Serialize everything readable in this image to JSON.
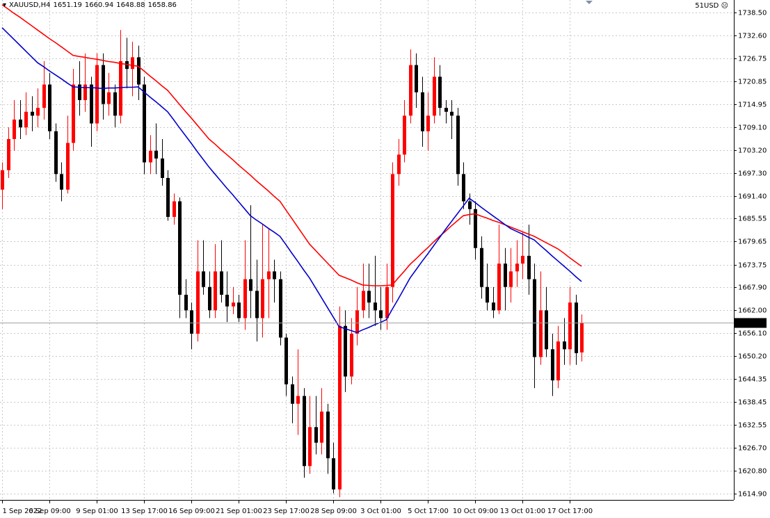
{
  "chart_data": {
    "type": "candlestick",
    "title": "XAUUSD,H4",
    "account": "51USD",
    "categories": [
      "1 Sep 2022",
      null,
      null,
      null,
      null,
      null,
      null,
      null,
      "6 Sep 09:00",
      null,
      null,
      null,
      null,
      null,
      null,
      null,
      "9 Sep 01:00",
      null,
      null,
      null,
      null,
      null,
      null,
      null,
      "13 Sep 17:00",
      null,
      null,
      null,
      null,
      null,
      null,
      null,
      "16 Sep 09:00",
      null,
      null,
      null,
      null,
      null,
      null,
      null,
      "21 Sep 01:00",
      null,
      null,
      null,
      null,
      null,
      null,
      null,
      "23 Sep 17:00",
      null,
      null,
      null,
      null,
      null,
      null,
      null,
      "28 Sep 09:00",
      null,
      null,
      null,
      null,
      null,
      null,
      null,
      "3 Oct 01:00",
      null,
      null,
      null,
      null,
      null,
      null,
      null,
      "5 Oct 17:00",
      null,
      null,
      null,
      null,
      null,
      null,
      null,
      "10 Oct 09:00",
      null,
      null,
      null,
      null,
      null,
      null,
      null,
      "13 Oct 01:00",
      null,
      null,
      null,
      null,
      null,
      null,
      null,
      "17 Oct 17:00",
      null,
      null
    ],
    "open": [
      1693,
      1698,
      1706,
      1711,
      1709,
      1713,
      1712,
      1714,
      1720,
      1708,
      1697,
      1693,
      1705,
      1720,
      1716,
      1720,
      1710,
      1725,
      1715,
      1718,
      1712,
      1726,
      1724,
      1727,
      1720,
      1700,
      1703,
      1701,
      1696,
      1686,
      1690,
      1666,
      1662,
      1656,
      1672,
      1668,
      1662,
      1672,
      1666,
      1663,
      1664,
      1660,
      1670,
      1667,
      1660,
      1670,
      1672,
      1670,
      1655,
      1643,
      1638,
      1640,
      1622,
      1632,
      1628,
      1636,
      1624,
      1616,
      1658,
      1645,
      1656,
      1662,
      1667,
      1664,
      1662,
      1660,
      1668,
      1697,
      1702,
      1712,
      1725,
      1718,
      1708,
      1712,
      1722,
      1714,
      1713,
      1712,
      1697,
      1690,
      1688,
      1678,
      1668,
      1664,
      1662,
      1674,
      1668,
      1672,
      1674,
      1676,
      1670,
      1650,
      1662,
      1652,
      1644,
      1654,
      1652,
      1664,
      1651.19
    ],
    "high": [
      1700,
      1709,
      1716,
      1716,
      1718,
      1717,
      1719,
      1726,
      1723,
      1710,
      1700,
      1712,
      1724,
      1726,
      1728,
      1722,
      1728,
      1728,
      1723,
      1720,
      1734,
      1732,
      1731,
      1730,
      1722,
      1707,
      1710,
      1706,
      1698,
      1692,
      1691,
      1670,
      1664,
      1680,
      1680,
      1672,
      1679,
      1680,
      1672,
      1668,
      1666,
      1680,
      1689,
      1675,
      1684,
      1683,
      1675,
      1672,
      1656,
      1645,
      1652,
      1642,
      1640,
      1640,
      1642,
      1638,
      1628,
      1663,
      1662,
      1660,
      1668,
      1674,
      1674,
      1676,
      1668,
      1674,
      1700,
      1706,
      1716,
      1729,
      1728,
      1722,
      1718,
      1727,
      1725,
      1716,
      1716,
      1714,
      1700,
      1692,
      1690,
      1681,
      1674,
      1668,
      1684,
      1678,
      1678,
      1680,
      1682,
      1684,
      1674,
      1672,
      1668,
      1656,
      1658,
      1660,
      1668,
      1666,
      1660.94
    ],
    "low": [
      1688,
      1696,
      1703,
      1706,
      1707,
      1708,
      1709,
      1711,
      1706,
      1695,
      1690,
      1692,
      1703,
      1712,
      1713,
      1704,
      1708,
      1711,
      1712,
      1709,
      1710,
      1719,
      1717,
      1716,
      1697,
      1697,
      1697,
      1694,
      1685,
      1684,
      1660,
      1660,
      1652,
      1654,
      1666,
      1660,
      1660,
      1664,
      1659,
      1661,
      1659,
      1657,
      1660,
      1654,
      1655,
      1660,
      1664,
      1653,
      1640,
      1633,
      1630,
      1619,
      1620,
      1625,
      1625,
      1620,
      1615,
      1614,
      1641,
      1643,
      1653,
      1660,
      1660,
      1658,
      1657,
      1657,
      1664,
      1694,
      1700,
      1710,
      1714,
      1704,
      1703,
      1710,
      1712,
      1710,
      1706,
      1694,
      1688,
      1684,
      1675,
      1665,
      1662,
      1660,
      1661,
      1662,
      1664,
      1668,
      1670,
      1666,
      1642,
      1648,
      1650,
      1640,
      1642,
      1648,
      1648,
      1648,
      1648.88
    ],
    "close": [
      1698,
      1706,
      1711,
      1709,
      1713,
      1712,
      1714,
      1720,
      1708,
      1697,
      1693,
      1705,
      1720,
      1716,
      1720,
      1710,
      1725,
      1715,
      1718,
      1712,
      1726,
      1724,
      1727,
      1720,
      1700,
      1703,
      1701,
      1696,
      1686,
      1690,
      1666,
      1662,
      1656,
      1672,
      1668,
      1662,
      1672,
      1666,
      1663,
      1664,
      1660,
      1670,
      1667,
      1660,
      1670,
      1672,
      1670,
      1655,
      1643,
      1638,
      1640,
      1622,
      1632,
      1628,
      1636,
      1624,
      1616,
      1658,
      1645,
      1656,
      1662,
      1667,
      1664,
      1662,
      1660,
      1668,
      1697,
      1702,
      1712,
      1725,
      1718,
      1708,
      1712,
      1722,
      1714,
      1713,
      1712,
      1697,
      1690,
      1688,
      1678,
      1668,
      1664,
      1662,
      1674,
      1668,
      1672,
      1674,
      1676,
      1670,
      1650,
      1662,
      1652,
      1644,
      1654,
      1652,
      1664,
      1651,
      1658.86
    ],
    "up_color": "#ff0000",
    "down_color": "#000000",
    "series": [
      {
        "color": "#ff0000",
        "values": [
          1740.5,
          1739.4,
          1738.3,
          1737.3,
          1736.2,
          1735.1,
          1734.0,
          1732.9,
          1731.8,
          1730.8,
          1729.7,
          1728.6,
          1727.5,
          1727.2,
          1727.0,
          1726.7,
          1726.5,
          1726.2,
          1725.9,
          1725.7,
          1725.4,
          1725.2,
          1724.9,
          1724.7,
          1723.5,
          1722.2,
          1721.0,
          1719.7,
          1718.5,
          1716.7,
          1714.9,
          1713.1,
          1711.4,
          1709.6,
          1707.8,
          1706.0,
          1704.7,
          1703.3,
          1702.0,
          1700.7,
          1699.3,
          1698.0,
          1696.7,
          1695.3,
          1694.0,
          1692.7,
          1691.3,
          1690.0,
          1687.8,
          1685.6,
          1683.4,
          1681.2,
          1679.0,
          1677.4,
          1675.8,
          1674.2,
          1672.6,
          1671.0,
          1670.4,
          1669.8,
          1669.1,
          1668.5,
          1668.4,
          1668.3,
          1668.3,
          1668.4,
          1668.5,
          1670.3,
          1672.0,
          1673.8,
          1675.2,
          1676.7,
          1678.1,
          1679.6,
          1681.0,
          1682.3,
          1683.7,
          1685.0,
          1686.3,
          1686.6,
          1686.8,
          1686.2,
          1685.7,
          1685.1,
          1684.6,
          1684.0,
          1683.4,
          1682.8,
          1682.2,
          1681.6,
          1681.0,
          1680.2,
          1679.4,
          1678.6,
          1677.8,
          1676.7,
          1675.5,
          1674.4,
          1673.3
        ]
      },
      {
        "color": "#0000cc",
        "values": [
          1734.6,
          1733.1,
          1731.6,
          1730.1,
          1728.6,
          1727.1,
          1725.6,
          1724.6,
          1723.5,
          1722.5,
          1721.5,
          1720.4,
          1719.4,
          1719.3,
          1719.2,
          1719.2,
          1719.1,
          1719.0,
          1719.1,
          1719.1,
          1719.2,
          1719.3,
          1719.3,
          1719.4,
          1718.1,
          1716.8,
          1715.6,
          1714.3,
          1713.0,
          1711.0,
          1708.9,
          1706.9,
          1704.9,
          1702.8,
          1700.8,
          1698.8,
          1697.0,
          1695.2,
          1693.4,
          1691.7,
          1689.9,
          1688.1,
          1686.3,
          1685.2,
          1684.2,
          1683.1,
          1682.1,
          1681.0,
          1678.9,
          1676.7,
          1674.6,
          1672.4,
          1670.3,
          1667.8,
          1665.3,
          1662.8,
          1660.3,
          1657.8,
          1657.3,
          1656.8,
          1656.3,
          1657.0,
          1657.6,
          1658.3,
          1658.9,
          1659.6,
          1662.3,
          1664.9,
          1667.6,
          1670.3,
          1672.4,
          1674.5,
          1676.5,
          1678.6,
          1680.7,
          1682.8,
          1684.8,
          1686.8,
          1688.8,
          1690.8,
          1689.7,
          1688.5,
          1687.4,
          1686.3,
          1685.2,
          1684.1,
          1683.0,
          1682.3,
          1681.6,
          1680.8,
          1680.1,
          1678.7,
          1677.4,
          1676.0,
          1674.7,
          1673.4,
          1672.1,
          1670.7,
          1669.4
        ]
      }
    ],
    "ylim": [
      1613.48,
      1741.71
    ],
    "yticks": [
      {
        "value": 1738.5,
        "label": "1738.50"
      },
      {
        "value": 1732.6,
        "label": "1732.60"
      },
      1726.75,
      1720.85,
      1714.95,
      {
        "value": 1709.1,
        "label": "1709.10"
      },
      {
        "value": 1703.2,
        "label": "1703.20"
      },
      {
        "value": 1697.3,
        "label": "1697.30"
      },
      {
        "value": 1691.4,
        "label": "1691.40"
      },
      1685.55,
      1679.65,
      1673.75,
      {
        "value": 1667.9,
        "label": "1667.90"
      },
      {
        "value": 1662,
        "label": "1662.00"
      },
      {
        "value": 1656.1,
        "label": "1656.10"
      },
      {
        "value": 1650.2,
        "label": "1650.20"
      },
      1644.35,
      1638.45,
      1632.55,
      {
        "value": 1626.7,
        "label": "1626.70"
      },
      {
        "value": 1620.8,
        "label": "1620.80"
      },
      {
        "value": 1614.9,
        "label": "1614.90"
      }
    ],
    "grid": true
  }
}
